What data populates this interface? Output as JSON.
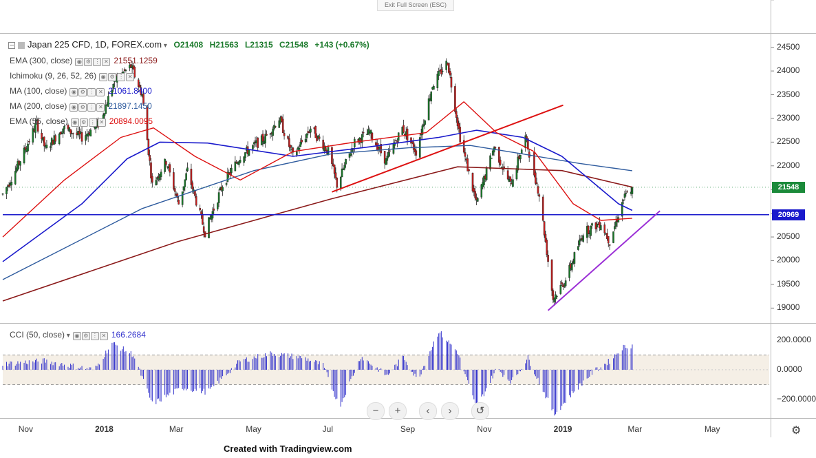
{
  "toolbar": {
    "exit_fullscreen": "Exit Full Screen (ESC)"
  },
  "symbol": {
    "title": "Japan 225 CFD, 1D, FOREX.com",
    "open": "O21408",
    "high": "H21563",
    "low": "L21315",
    "close": "C21548",
    "change": "+143 (+0.67%)"
  },
  "indicators": [
    {
      "label": "EMA (300, close)",
      "value": "21551.1259",
      "color": "#8b1a1a"
    },
    {
      "label": "Ichimoku (9, 26, 52, 26)",
      "value": "",
      "color": "#888888"
    },
    {
      "label": "MA (100, close)",
      "value": "21061.8400",
      "color": "#1a1acc"
    },
    {
      "label": "MA (200, close)",
      "value": "21897.1450",
      "color": "#2e5b9e"
    },
    {
      "label": "EMA (55, close)",
      "value": "20894.0095",
      "color": "#dd1111"
    }
  ],
  "cci": {
    "label": "CCI (50, close)",
    "value": "166.2684",
    "color": "#3333cc"
  },
  "price_axis": {
    "ticks": [
      "24500",
      "24000",
      "23500",
      "23000",
      "22500",
      "22000",
      "21500",
      "21000",
      "20500",
      "20000",
      "19500",
      "19000"
    ],
    "current_price": "21548",
    "current_color": "#1b8a3a",
    "hline_label": "20969",
    "hline_color": "#1a1acc"
  },
  "cci_axis": {
    "ticks": [
      "200.0000",
      "0.0000",
      "−200.0000"
    ]
  },
  "time_axis": [
    "Nov",
    "2018",
    "Mar",
    "May",
    "Jul",
    "Sep",
    "Nov",
    "2019",
    "Mar",
    "May"
  ],
  "nav_buttons": {
    "zoom_out": "−",
    "zoom_in": "+",
    "scroll_left": "‹",
    "scroll_right": "›",
    "reset": "↺"
  },
  "footer": "Created with Tradingview.com",
  "chart_data": {
    "type": "candlestick",
    "title": "Japan 225 CFD, 1D, FOREX.com",
    "ylim": [
      18700,
      24800
    ],
    "x_range": [
      "2017-10-13",
      "2019-06-15"
    ],
    "ohlc_last": {
      "open": 21408,
      "high": 21563,
      "low": 21315,
      "close": 21548,
      "change": 143,
      "change_pct": 0.67
    },
    "price_path": [
      [
        "2017-10-13",
        21400
      ],
      [
        "2017-10-25",
        22000
      ],
      [
        "2017-11-09",
        22900
      ],
      [
        "2017-11-16",
        22350
      ],
      [
        "2017-11-30",
        22800
      ],
      [
        "2017-12-15",
        22600
      ],
      [
        "2017-12-29",
        22900
      ],
      [
        "2018-01-10",
        23800
      ],
      [
        "2018-01-23",
        24100
      ],
      [
        "2018-02-01",
        23500
      ],
      [
        "2018-02-09",
        21600
      ],
      [
        "2018-02-20",
        22100
      ],
      [
        "2018-03-02",
        21200
      ],
      [
        "2018-03-09",
        21900
      ],
      [
        "2018-03-23",
        20600
      ],
      [
        "2018-04-06",
        21600
      ],
      [
        "2018-04-20",
        22200
      ],
      [
        "2018-05-10",
        22600
      ],
      [
        "2018-05-21",
        23000
      ],
      [
        "2018-06-01",
        22200
      ],
      [
        "2018-06-15",
        22800
      ],
      [
        "2018-06-29",
        22300
      ],
      [
        "2018-07-06",
        21600
      ],
      [
        "2018-07-20",
        22500
      ],
      [
        "2018-08-01",
        22700
      ],
      [
        "2018-08-14",
        22100
      ],
      [
        "2018-08-27",
        22800
      ],
      [
        "2018-09-07",
        22300
      ],
      [
        "2018-09-20",
        23700
      ],
      [
        "2018-10-02",
        24200
      ],
      [
        "2018-10-12",
        22600
      ],
      [
        "2018-10-25",
        21200
      ],
      [
        "2018-11-08",
        22400
      ],
      [
        "2018-11-21",
        21600
      ],
      [
        "2018-12-03",
        22600
      ],
      [
        "2018-12-14",
        21400
      ],
      [
        "2018-12-25",
        19200
      ],
      [
        "2019-01-04",
        19600
      ],
      [
        "2019-01-18",
        20600
      ],
      [
        "2019-02-01",
        20800
      ],
      [
        "2019-02-08",
        20400
      ],
      [
        "2019-02-19",
        21300
      ],
      [
        "2019-02-26",
        21548
      ]
    ],
    "ema300_path": [
      [
        "2017-10-13",
        19150
      ],
      [
        "2018-03-01",
        20400
      ],
      [
        "2018-07-01",
        21300
      ],
      [
        "2018-10-10",
        21980
      ],
      [
        "2019-01-01",
        21900
      ],
      [
        "2019-02-26",
        21551
      ]
    ],
    "ma100_path": [
      [
        "2017-10-13",
        19980
      ],
      [
        "2017-12-15",
        21200
      ],
      [
        "2018-01-20",
        22150
      ],
      [
        "2018-02-15",
        22500
      ],
      [
        "2018-03-25",
        22480
      ],
      [
        "2018-06-01",
        22200
      ],
      [
        "2018-08-01",
        22400
      ],
      [
        "2018-09-25",
        22600
      ],
      [
        "2018-10-25",
        22750
      ],
      [
        "2018-12-01",
        22600
      ],
      [
        "2019-01-01",
        22200
      ],
      [
        "2019-02-15",
        21200
      ],
      [
        "2019-02-26",
        21060
      ]
    ],
    "ma200_path": [
      [
        "2017-10-13",
        19600
      ],
      [
        "2018-02-01",
        21100
      ],
      [
        "2018-05-01",
        21900
      ],
      [
        "2018-07-01",
        22250
      ],
      [
        "2018-09-01",
        22380
      ],
      [
        "2018-10-20",
        22430
      ],
      [
        "2018-12-01",
        22250
      ],
      [
        "2019-01-15",
        22050
      ],
      [
        "2019-02-26",
        21897
      ]
    ],
    "ema55_path": [
      [
        "2017-10-13",
        20500
      ],
      [
        "2017-12-01",
        21700
      ],
      [
        "2018-01-15",
        22600
      ],
      [
        "2018-02-10",
        22800
      ],
      [
        "2018-03-15",
        22200
      ],
      [
        "2018-04-20",
        21700
      ],
      [
        "2018-06-01",
        22300
      ],
      [
        "2018-07-20",
        22500
      ],
      [
        "2018-09-15",
        22700
      ],
      [
        "2018-10-15",
        23350
      ],
      [
        "2018-11-10",
        22700
      ],
      [
        "2018-12-10",
        22300
      ],
      [
        "2019-01-10",
        21200
      ],
      [
        "2019-02-01",
        20850
      ],
      [
        "2019-02-26",
        20894
      ]
    ],
    "trendlines": [
      {
        "from": [
          "2018-07-02",
          21450
        ],
        "to": [
          "2019-01-02",
          23280
        ],
        "color": "#dd1111"
      },
      {
        "from": [
          "2018-12-21",
          18950
        ],
        "to": [
          "2019-03-20",
          21050
        ],
        "color": "#9b2fd6"
      }
    ],
    "horizontal_line": {
      "value": 20969,
      "color": "#1a1acc"
    },
    "cci_ylim": [
      -320,
      310
    ],
    "cci_levels": [
      100,
      -100
    ],
    "cci_path": [
      [
        "2017-10-13",
        40
      ],
      [
        "2017-11-15",
        60
      ],
      [
        "2017-12-25",
        0
      ],
      [
        "2018-01-08",
        180
      ],
      [
        "2018-01-25",
        100
      ],
      [
        "2018-02-09",
        -230
      ],
      [
        "2018-03-05",
        -120
      ],
      [
        "2018-03-25",
        -150
      ],
      [
        "2018-04-20",
        60
      ],
      [
        "2018-05-15",
        110
      ],
      [
        "2018-06-10",
        80
      ],
      [
        "2018-06-25",
        30
      ],
      [
        "2018-07-08",
        -250
      ],
      [
        "2018-07-25",
        90
      ],
      [
        "2018-08-15",
        -40
      ],
      [
        "2018-08-28",
        90
      ],
      [
        "2018-09-08",
        -70
      ],
      [
        "2018-09-25",
        260
      ],
      [
        "2018-10-10",
        120
      ],
      [
        "2018-10-25",
        -260
      ],
      [
        "2018-11-10",
        10
      ],
      [
        "2018-11-22",
        -80
      ],
      [
        "2018-12-05",
        80
      ],
      [
        "2018-12-26",
        -300
      ],
      [
        "2019-01-10",
        -150
      ],
      [
        "2019-01-25",
        -20
      ],
      [
        "2019-02-08",
        60
      ],
      [
        "2019-02-18",
        150
      ],
      [
        "2019-02-26",
        166
      ]
    ]
  }
}
